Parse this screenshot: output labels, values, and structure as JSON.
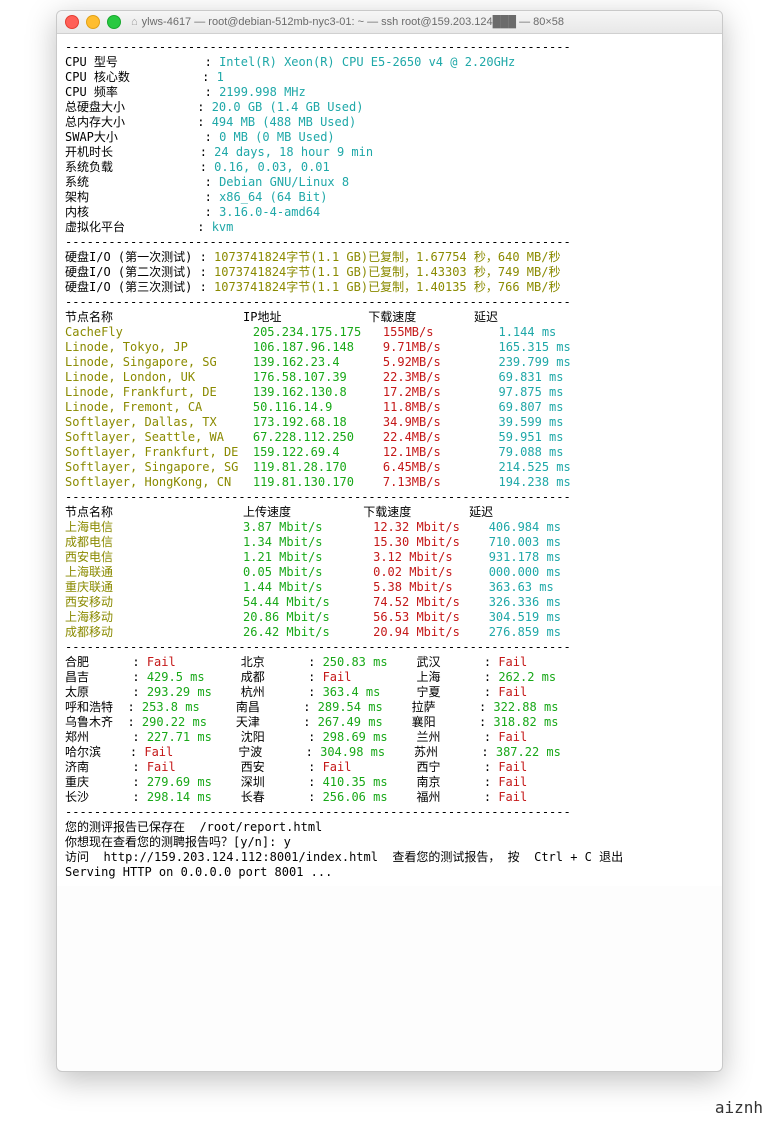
{
  "window": {
    "title": "ylws-4617 — root@debian-512mb-nyc3-01: ~ — ssh root@159.203.124███ — 80×58"
  },
  "colors": {
    "cyan": "#1fa8a8",
    "olive": "#8a8a00",
    "green": "#18a818",
    "red": "#c41818",
    "black": "#000000",
    "bg": "#ffffff"
  },
  "dash": "----------------------------------------------------------------------",
  "sys": [
    {
      "k": "CPU 型号",
      "v": "Intel(R) Xeon(R) CPU E5-2650 v4 @ 2.20GHz"
    },
    {
      "k": "CPU 核心数",
      "v": "1"
    },
    {
      "k": "CPU 频率",
      "v": "2199.998 MHz"
    },
    {
      "k": "总硬盘大小",
      "v": "20.0 GB (1.4 GB Used)"
    },
    {
      "k": "总内存大小",
      "v": "494 MB (488 MB Used)"
    },
    {
      "k": "SWAP大小",
      "v": "0 MB (0 MB Used)"
    },
    {
      "k": "开机时长",
      "v": "24 days, 18 hour 9 min"
    },
    {
      "k": "系统负载",
      "v": "0.16, 0.03, 0.01"
    },
    {
      "k": "系统",
      "v": "Debian GNU/Linux 8"
    },
    {
      "k": "架构",
      "v": "x86_64 (64 Bit)"
    },
    {
      "k": "内核",
      "v": "3.16.0-4-amd64"
    },
    {
      "k": "虚拟化平台",
      "v": "kvm"
    }
  ],
  "io": [
    {
      "k": "硬盘I/O (第一次测试) :",
      "v": "1073741824字节(1.1 GB)已复制，1.67754 秒，640 MB/秒"
    },
    {
      "k": "硬盘I/O (第二次测试) :",
      "v": "1073741824字节(1.1 GB)已复制，1.43303 秒，749 MB/秒"
    },
    {
      "k": "硬盘I/O (第三次测试) :",
      "v": "1073741824字节(1.1 GB)已复制，1.40135 秒，766 MB/秒"
    }
  ],
  "hdr1": {
    "name": "节点名称",
    "ip": "IP地址",
    "dl": "下载速度",
    "ping": "延迟"
  },
  "nodes": [
    {
      "name": "CacheFly",
      "ip": "205.234.175.175",
      "dl": "155MB/s",
      "ping": "1.144 ms"
    },
    {
      "name": "Linode, Tokyo, JP",
      "ip": "106.187.96.148",
      "dl": "9.71MB/s",
      "ping": "165.315 ms"
    },
    {
      "name": "Linode, Singapore, SG",
      "ip": "139.162.23.4",
      "dl": "5.92MB/s",
      "ping": "239.799 ms"
    },
    {
      "name": "Linode, London, UK",
      "ip": "176.58.107.39",
      "dl": "22.3MB/s",
      "ping": "69.831 ms"
    },
    {
      "name": "Linode, Frankfurt, DE",
      "ip": "139.162.130.8",
      "dl": "17.2MB/s",
      "ping": "97.875 ms"
    },
    {
      "name": "Linode, Fremont, CA",
      "ip": "50.116.14.9",
      "dl": "11.8MB/s",
      "ping": "69.807 ms"
    },
    {
      "name": "Softlayer, Dallas, TX",
      "ip": "173.192.68.18",
      "dl": "34.9MB/s",
      "ping": "39.599 ms"
    },
    {
      "name": "Softlayer, Seattle, WA",
      "ip": "67.228.112.250",
      "dl": "22.4MB/s",
      "ping": "59.951 ms"
    },
    {
      "name": "Softlayer, Frankfurt, DE",
      "ip": "159.122.69.4",
      "dl": "12.1MB/s",
      "ping": "79.088 ms"
    },
    {
      "name": "Softlayer, Singapore, SG",
      "ip": "119.81.28.170",
      "dl": "6.45MB/s",
      "ping": "214.525 ms"
    },
    {
      "name": "Softlayer, HongKong, CN",
      "ip": "119.81.130.170",
      "dl": "7.13MB/s",
      "ping": "194.238 ms"
    }
  ],
  "hdr2": {
    "name": "节点名称",
    "ul": "上传速度",
    "dl": "下载速度",
    "ping": "延迟"
  },
  "cn": [
    {
      "name": "上海电信",
      "ul": "3.87 Mbit/s",
      "dl": "12.32 Mbit/s",
      "ping": "406.984 ms"
    },
    {
      "name": "成都电信",
      "ul": "1.34 Mbit/s",
      "dl": "15.30 Mbit/s",
      "ping": "710.003 ms"
    },
    {
      "name": "西安电信",
      "ul": "1.21 Mbit/s",
      "dl": "3.12 Mbit/s",
      "ping": "931.178 ms"
    },
    {
      "name": "上海联通",
      "ul": "0.05 Mbit/s",
      "dl": "0.02 Mbit/s",
      "ping": "000.000 ms"
    },
    {
      "name": "重庆联通",
      "ul": "1.44 Mbit/s",
      "dl": "5.38 Mbit/s",
      "ping": "363.63 ms"
    },
    {
      "name": "西安移动",
      "ul": "54.44 Mbit/s",
      "dl": "74.52 Mbit/s",
      "ping": "326.336 ms"
    },
    {
      "name": "上海移动",
      "ul": "20.86 Mbit/s",
      "dl": "56.53 Mbit/s",
      "ping": "304.519 ms"
    },
    {
      "name": "成都移动",
      "ul": "26.42 Mbit/s",
      "dl": "20.94 Mbit/s",
      "ping": "276.859 ms"
    }
  ],
  "pings": [
    [
      {
        "c": "合肥",
        "v": "Fail"
      },
      {
        "c": "北京",
        "v": "250.83 ms"
      },
      {
        "c": "武汉",
        "v": "Fail"
      }
    ],
    [
      {
        "c": "昌吉",
        "v": "429.5 ms"
      },
      {
        "c": "成都",
        "v": "Fail"
      },
      {
        "c": "上海",
        "v": "262.2 ms"
      }
    ],
    [
      {
        "c": "太原",
        "v": "293.29 ms"
      },
      {
        "c": "杭州",
        "v": "363.4 ms"
      },
      {
        "c": "宁夏",
        "v": "Fail"
      }
    ],
    [
      {
        "c": "呼和浩特",
        "v": "253.8 ms"
      },
      {
        "c": "南昌",
        "v": "289.54 ms"
      },
      {
        "c": "拉萨",
        "v": "322.88 ms"
      }
    ],
    [
      {
        "c": "乌鲁木齐",
        "v": "290.22 ms"
      },
      {
        "c": "天津",
        "v": "267.49 ms"
      },
      {
        "c": "襄阳",
        "v": "318.82 ms"
      }
    ],
    [
      {
        "c": "郑州",
        "v": "227.71 ms"
      },
      {
        "c": "沈阳",
        "v": "298.69 ms"
      },
      {
        "c": "兰州",
        "v": "Fail"
      }
    ],
    [
      {
        "c": "哈尔滨",
        "v": "Fail"
      },
      {
        "c": "宁波",
        "v": "304.98 ms"
      },
      {
        "c": "苏州",
        "v": "387.22 ms"
      }
    ],
    [
      {
        "c": "济南",
        "v": "Fail"
      },
      {
        "c": "西安",
        "v": "Fail"
      },
      {
        "c": "西宁",
        "v": "Fail"
      }
    ],
    [
      {
        "c": "重庆",
        "v": "279.69 ms"
      },
      {
        "c": "深圳",
        "v": "410.35 ms"
      },
      {
        "c": "南京",
        "v": "Fail"
      }
    ],
    [
      {
        "c": "长沙",
        "v": "298.14 ms"
      },
      {
        "c": "长春",
        "v": "256.06 ms"
      },
      {
        "c": "福州",
        "v": "Fail"
      }
    ]
  ],
  "footer": {
    "saved": "您的测评报告已保存在  /root/report.html",
    "prompt": "你想现在查看您的测聘报告吗？[y/n]: y",
    "access": "访问  http://159.203.124.112:8001/index.html  查看您的测试报告， 按  Ctrl + C 退出",
    "serving": "Serving HTTP on 0.0.0.0 port 8001 ..."
  },
  "watermark": "aiznh"
}
